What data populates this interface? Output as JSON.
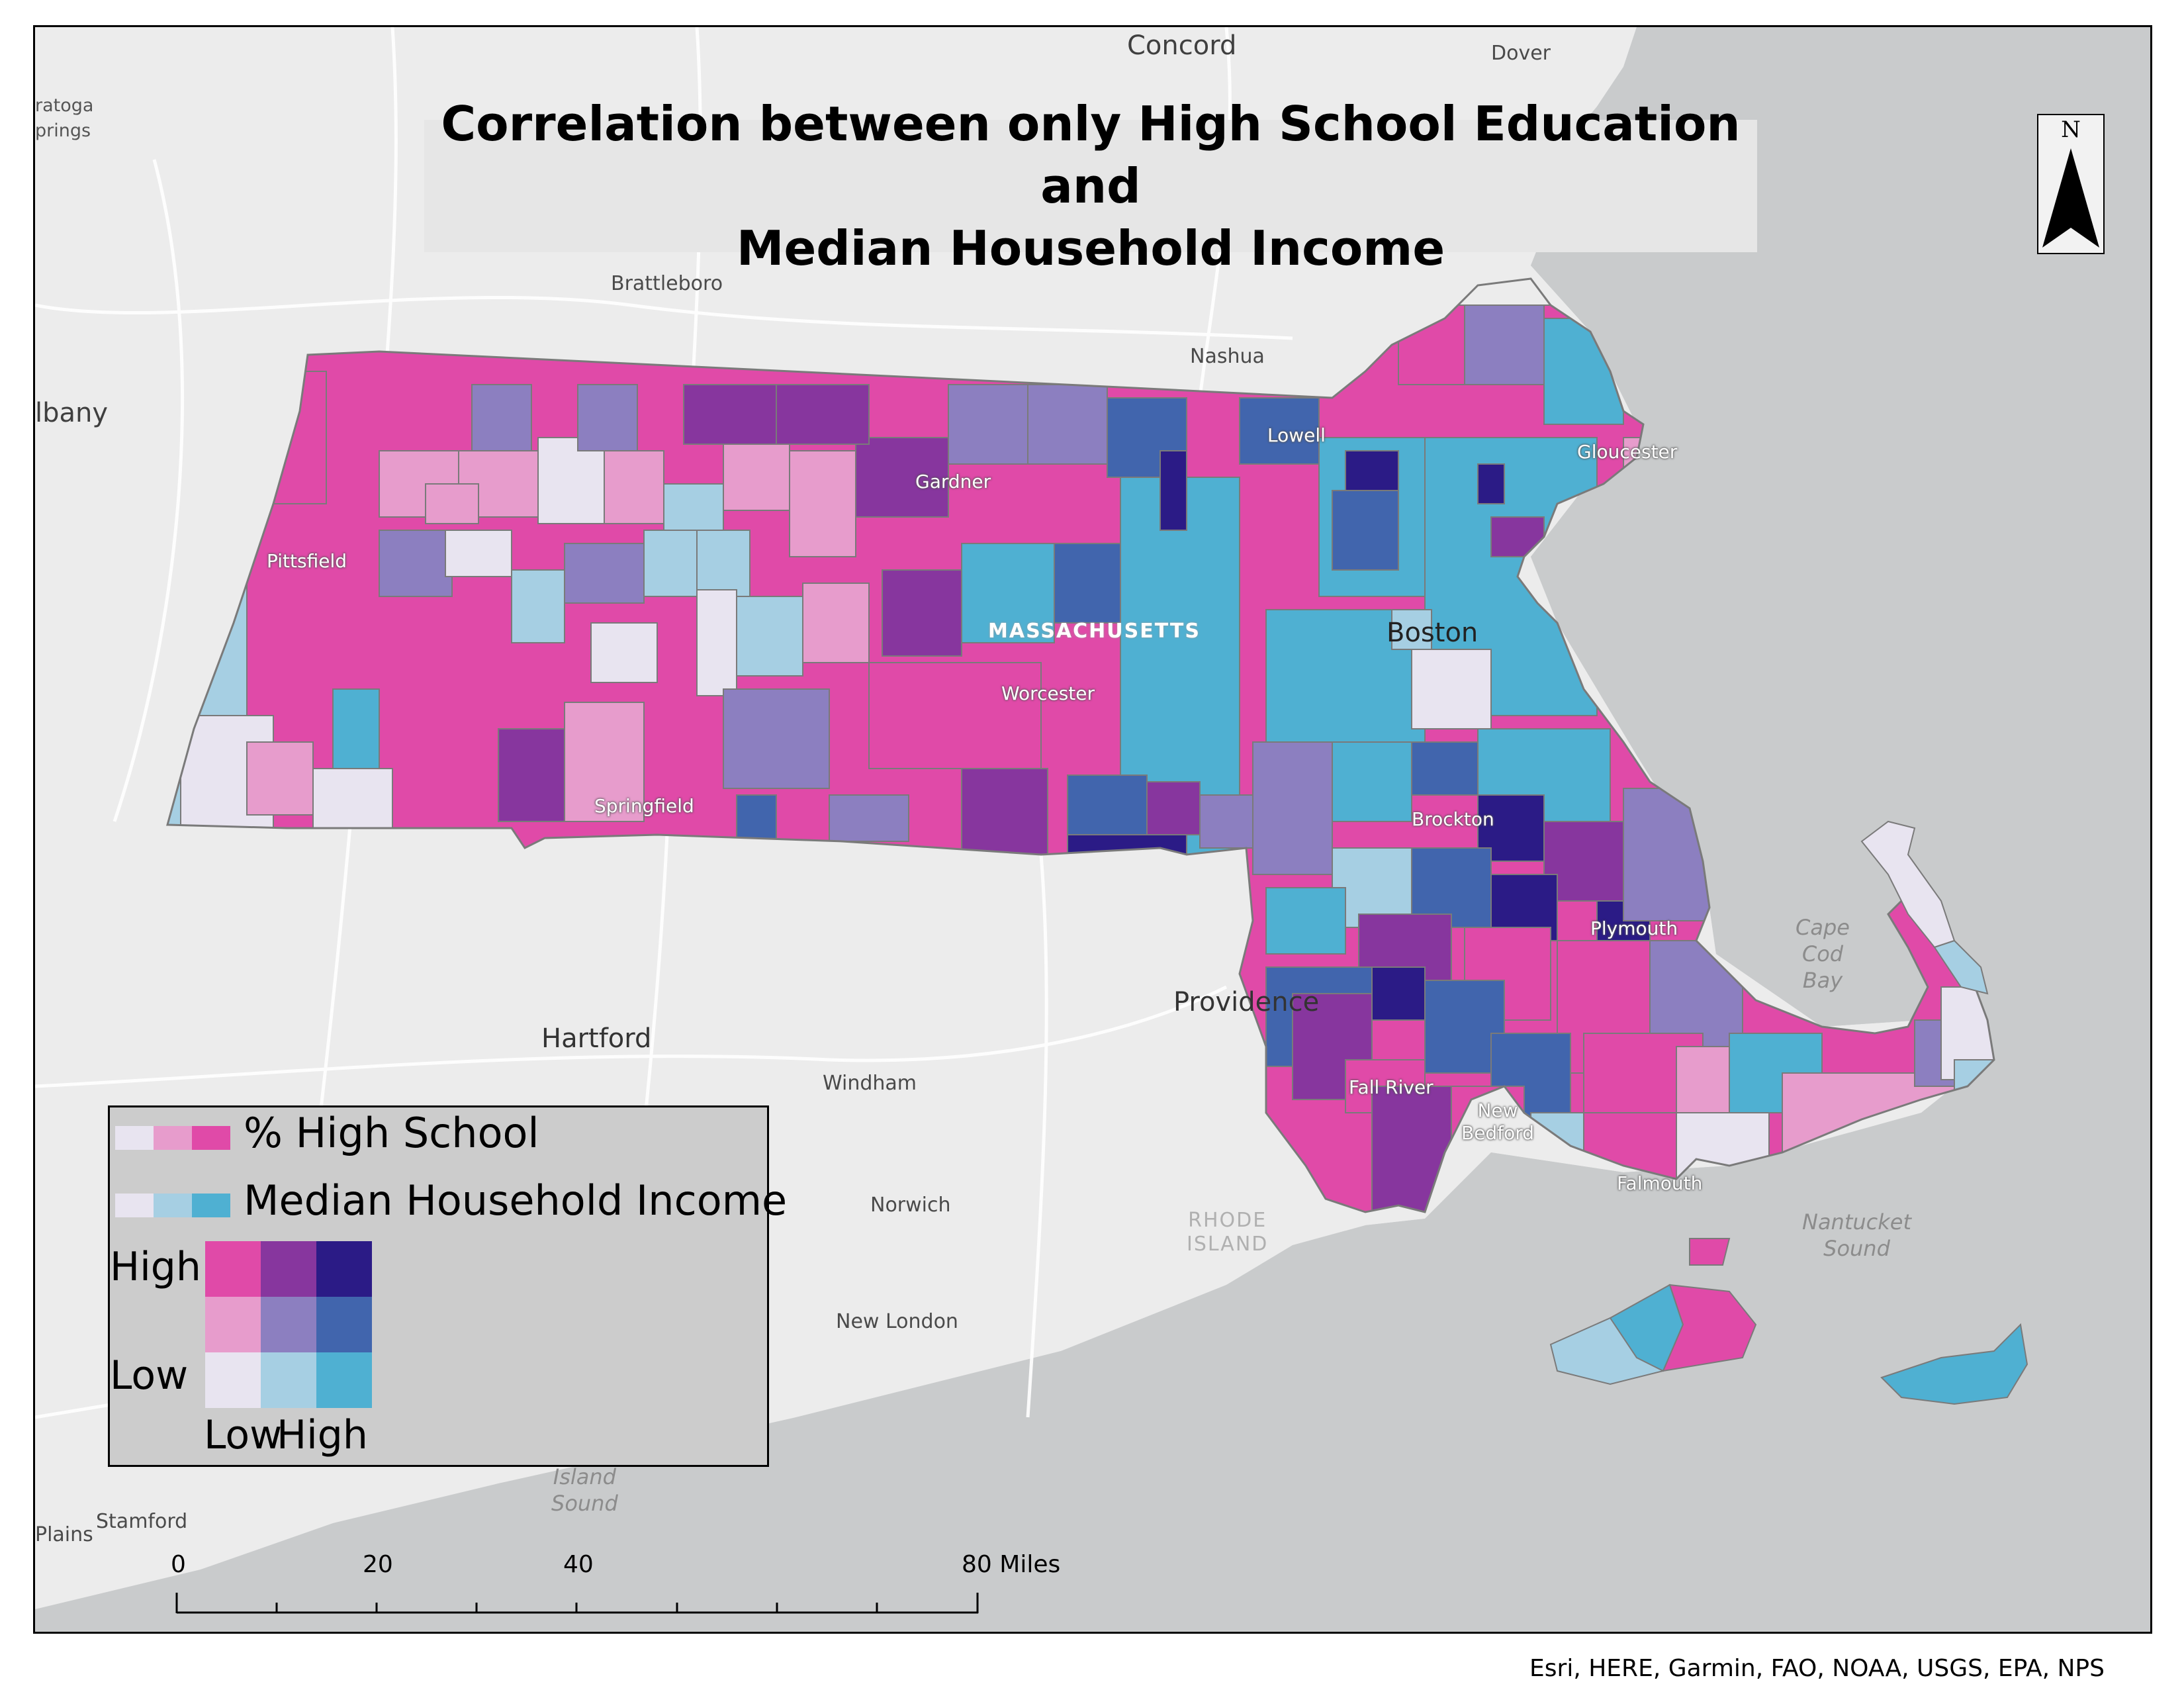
{
  "title": "Correlation between only High School Education and\nMedian Household Income",
  "place_labels": {
    "concord": "Concord",
    "dover": "Dover",
    "saratoga": "ratoga\nprings",
    "albany": "lbany",
    "brattleboro": "Brattleboro",
    "nashua": "Nashua",
    "lowell": "Lowell",
    "gloucester": "Gloucester",
    "gardner": "Gardner",
    "pittsfield": "Pittsfield",
    "massachusetts": "MASSACHUSETTS",
    "boston": "Boston",
    "worcester": "Worcester",
    "springfield": "Springfield",
    "brockton": "Brockton",
    "plymouth": "Plymouth",
    "cape_cod_bay": "Cape\nCod\nBay",
    "providence": "Providence",
    "hartford": "Hartford",
    "windham": "Windham",
    "fall_river": "Fall River",
    "new_bedford": "New\nBedford",
    "falmouth": "Falmouth",
    "nantucket_sound": "Nantucket\nSound",
    "norwich": "Norwich",
    "rhode_island": "RHODE\nISLAND",
    "new_london": "New London",
    "island_sound": "Island\nSound",
    "plains": "Plains",
    "stamford": "Stamford"
  },
  "legend": {
    "item1_label": "% High School",
    "item2_label": "Median Household Income",
    "y_high": "High",
    "y_low": "Low",
    "x_low": "Low",
    "x_high": "High",
    "colors": {
      "low_low": "#e8e4f0",
      "mid_low": "#a6cfe3",
      "high_low": "#4fb0d2",
      "low_mid": "#e79ccc",
      "mid_mid": "#8c7fc0",
      "high_mid": "#4165ad",
      "low_high": "#e04aa8",
      "mid_high": "#87369e",
      "high_high": "#2b1b86"
    }
  },
  "scale_bar": {
    "labels": [
      "0",
      "20",
      "40",
      "80 Miles"
    ]
  },
  "north_arrow": {
    "label": "N"
  },
  "attribution": "Esri, HERE, Garmin, FAO, NOAA, USGS, EPA, NPS"
}
